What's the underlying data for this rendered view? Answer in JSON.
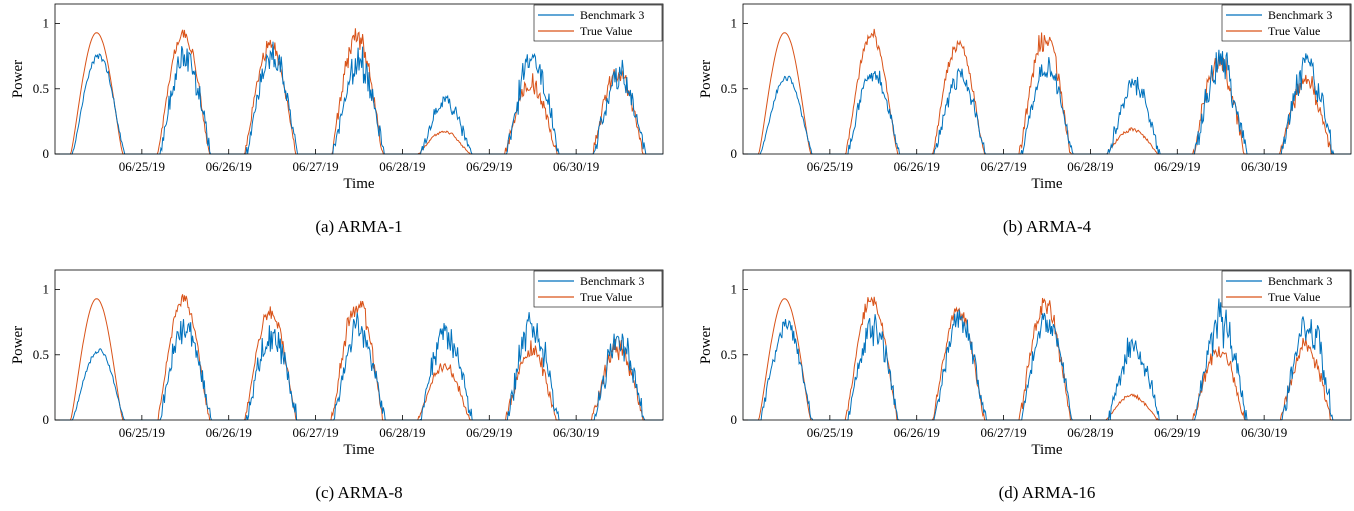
{
  "figure": {
    "colors": {
      "benchmark": "#0072BD",
      "true_value": "#D95319",
      "axis": "#000000"
    },
    "panels_caption": [
      "(a) ARMA-1",
      "(b) ARMA-4",
      "(c) ARMA-8",
      "(d) ARMA-16"
    ]
  },
  "chart_data": [
    {
      "type": "line",
      "caption": "(a) ARMA-1",
      "title": "",
      "xlabel": "Time",
      "ylabel": "Power",
      "xticks": [
        "06/25/19",
        "06/26/19",
        "06/27/19",
        "06/28/19",
        "06/29/19",
        "06/30/19"
      ],
      "yticks": [
        "0",
        "0.5",
        "1"
      ],
      "xlim": [
        "06/24/19 00:00",
        "06/30/19 24:00"
      ],
      "ylim": [
        0,
        1.15
      ],
      "grid": false,
      "legend": "top-right",
      "days": [
        "06/24/19",
        "06/25/19",
        "06/26/19",
        "06/27/19",
        "06/28/19",
        "06/29/19",
        "06/30/19"
      ],
      "series": [
        {
          "name": "Benchmark 3",
          "color": "#0072BD",
          "daily_peak": [
            0.78,
            0.82,
            0.85,
            0.8,
            0.45,
            0.85,
            0.7
          ],
          "daily_noise": [
            0.06,
            0.22,
            0.2,
            0.25,
            0.25,
            0.28,
            0.3
          ]
        },
        {
          "name": "True Value",
          "color": "#D95319",
          "daily_peak": [
            0.93,
            0.96,
            0.88,
            0.96,
            0.18,
            0.6,
            0.7
          ],
          "daily_noise": [
            0.0,
            0.08,
            0.1,
            0.15,
            0.12,
            0.2,
            0.18
          ]
        }
      ]
    },
    {
      "type": "line",
      "caption": "(b) ARMA-4",
      "title": "",
      "xlabel": "Time",
      "ylabel": "Power",
      "xticks": [
        "06/25/19",
        "06/26/19",
        "06/27/19",
        "06/28/19",
        "06/29/19",
        "06/30/19"
      ],
      "yticks": [
        "0",
        "0.5",
        "1"
      ],
      "xlim": [
        "06/24/19 00:00",
        "06/30/19 24:00"
      ],
      "ylim": [
        0,
        1.15
      ],
      "grid": false,
      "legend": "top-right",
      "days": [
        "06/24/19",
        "06/25/19",
        "06/26/19",
        "06/27/19",
        "06/28/19",
        "06/29/19",
        "06/30/19"
      ],
      "series": [
        {
          "name": "Benchmark 3",
          "color": "#0072BD",
          "daily_peak": [
            0.6,
            0.68,
            0.65,
            0.75,
            0.6,
            0.8,
            0.8
          ],
          "daily_noise": [
            0.08,
            0.18,
            0.2,
            0.2,
            0.25,
            0.3,
            0.3
          ]
        },
        {
          "name": "True Value",
          "color": "#D95319",
          "daily_peak": [
            0.93,
            0.96,
            0.88,
            0.96,
            0.2,
            0.8,
            0.62
          ],
          "daily_noise": [
            0.0,
            0.08,
            0.1,
            0.15,
            0.12,
            0.2,
            0.2
          ]
        }
      ]
    },
    {
      "type": "line",
      "caption": "(c) ARMA-8",
      "title": "",
      "xlabel": "Time",
      "ylabel": "Power",
      "xticks": [
        "06/25/19",
        "06/26/19",
        "06/27/19",
        "06/28/19",
        "06/29/19",
        "06/30/19"
      ],
      "yticks": [
        "0",
        "0.5",
        "1"
      ],
      "xlim": [
        "06/24/19 00:00",
        "06/30/19 24:00"
      ],
      "ylim": [
        0,
        1.15
      ],
      "grid": false,
      "legend": "top-right",
      "days": [
        "06/24/19",
        "06/25/19",
        "06/26/19",
        "06/27/19",
        "06/28/19",
        "06/29/19",
        "06/30/19"
      ],
      "series": [
        {
          "name": "Benchmark 3",
          "color": "#0072BD",
          "daily_peak": [
            0.55,
            0.8,
            0.75,
            0.8,
            0.78,
            0.85,
            0.7
          ],
          "daily_noise": [
            0.06,
            0.25,
            0.25,
            0.25,
            0.3,
            0.3,
            0.3
          ]
        },
        {
          "name": "True Value",
          "color": "#D95319",
          "daily_peak": [
            0.93,
            0.96,
            0.88,
            0.96,
            0.45,
            0.6,
            0.62
          ],
          "daily_noise": [
            0.0,
            0.08,
            0.1,
            0.15,
            0.15,
            0.2,
            0.2
          ]
        }
      ]
    },
    {
      "type": "line",
      "caption": "(d) ARMA-16",
      "title": "",
      "xlabel": "Time",
      "ylabel": "Power",
      "xticks": [
        "06/25/19",
        "06/26/19",
        "06/27/19",
        "06/28/19",
        "06/29/19",
        "06/30/19"
      ],
      "yticks": [
        "0",
        "0.5",
        "1"
      ],
      "xlim": [
        "06/24/19 00:00",
        "06/30/19 24:00"
      ],
      "ylim": [
        0,
        1.15
      ],
      "grid": false,
      "legend": "top-right",
      "days": [
        "06/24/19",
        "06/25/19",
        "06/26/19",
        "06/27/19",
        "06/28/19",
        "06/29/19",
        "06/30/19"
      ],
      "series": [
        {
          "name": "Benchmark 3",
          "color": "#0072BD",
          "daily_peak": [
            0.78,
            0.8,
            0.85,
            0.85,
            0.65,
            0.9,
            0.88
          ],
          "daily_noise": [
            0.15,
            0.25,
            0.2,
            0.2,
            0.3,
            0.3,
            0.3
          ]
        },
        {
          "name": "True Value",
          "color": "#D95319",
          "daily_peak": [
            0.93,
            0.96,
            0.88,
            0.96,
            0.2,
            0.6,
            0.62
          ],
          "daily_noise": [
            0.0,
            0.08,
            0.1,
            0.15,
            0.12,
            0.2,
            0.2
          ]
        }
      ]
    }
  ]
}
